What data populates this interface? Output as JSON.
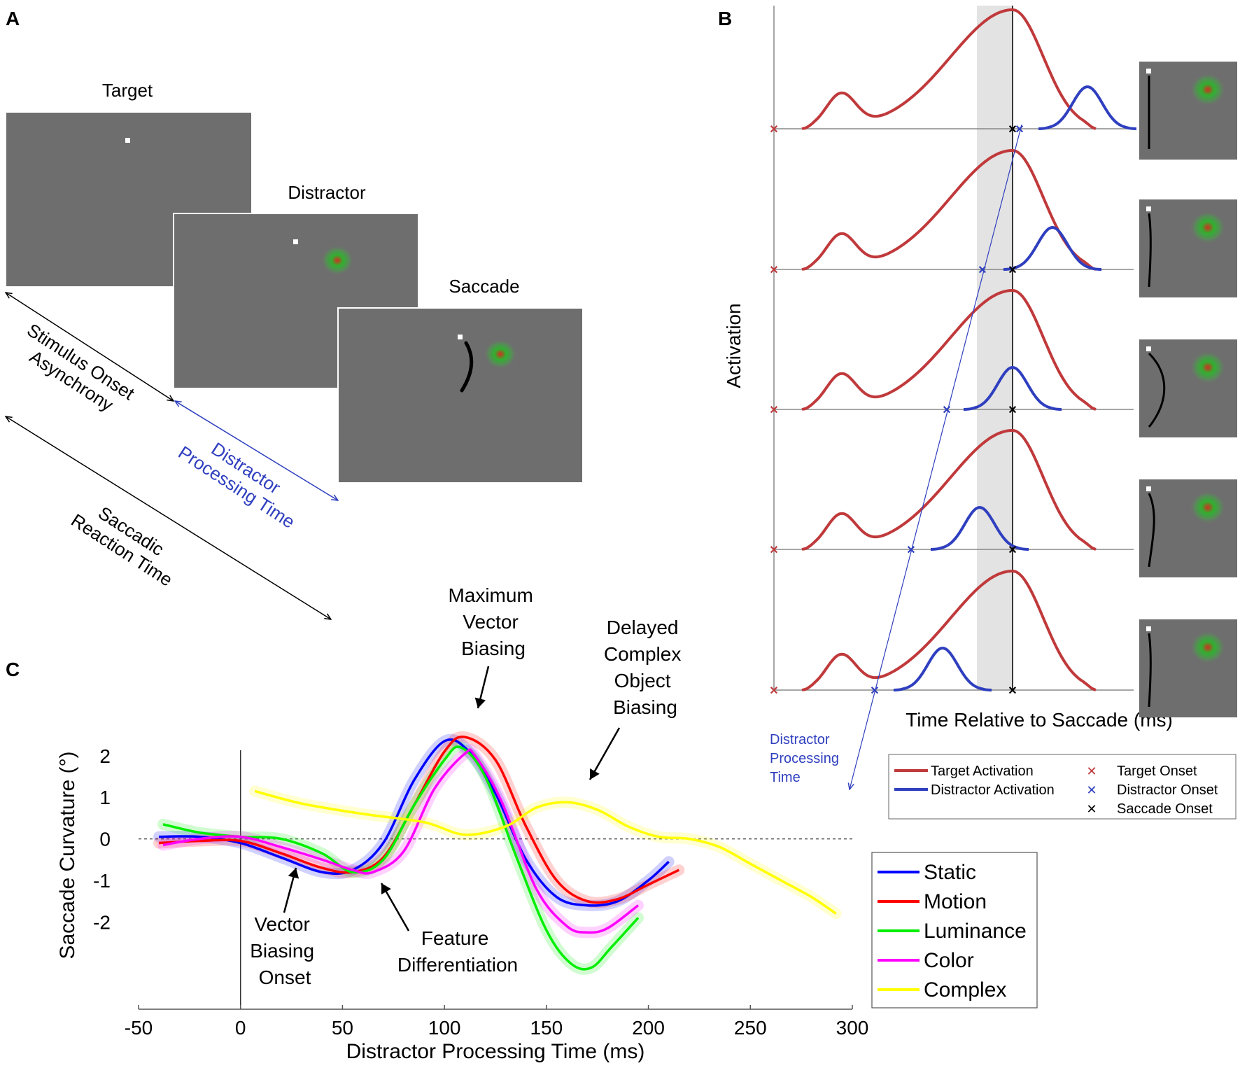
{
  "panel_labels": {
    "a": "A",
    "b": "B",
    "c": "C"
  },
  "panel_a": {
    "target_label": "Target",
    "distractor_label": "Distractor",
    "saccade_label": "Saccade",
    "soa_line1": "Stimulus Onset",
    "soa_line2": "Asynchrony",
    "dpt_line1": "Distractor",
    "dpt_line2": "Processing Time",
    "srt_line1": "Saccadic",
    "srt_line2": "Reaction Time"
  },
  "panel_b": {
    "ylabel": "Activation",
    "xlabel": "Time Relative to Saccade (ms)",
    "dpt_line1": "Distractor",
    "dpt_line2": "Processing",
    "dpt_line3": "Time",
    "legend": {
      "target_activation": "Target Activation",
      "distractor_activation": "Distractor Activation",
      "target_onset": "Target Onset",
      "distractor_onset": "Distractor Onset",
      "saccade_onset": "Saccade Onset"
    },
    "colors": {
      "target": "#c0393b",
      "distractor": "#2f3fbf",
      "saccade": "#000000",
      "shade": "#e3e3e3"
    }
  },
  "chart_data": {
    "type": "line",
    "title": "",
    "xlabel": "Distractor Processing Time (ms)",
    "ylabel": "Saccade Curvature (°)",
    "xlim": [
      -50,
      300
    ],
    "ylim": [
      -4.1,
      2.3
    ],
    "xticks": [
      "-50",
      "0",
      "50",
      "100",
      "150",
      "200",
      "250",
      "300"
    ],
    "yticks": [
      "2",
      "1",
      "0",
      "-1",
      "-2"
    ],
    "legend_position": "right",
    "series": [
      {
        "name": "Static",
        "color": "#0000ff",
        "x": [
          -40,
          -20,
          0,
          20,
          40,
          55,
          70,
          85,
          100,
          112,
          125,
          140,
          155,
          170,
          185,
          200,
          210
        ],
        "y": [
          0.05,
          0.05,
          -0.1,
          -0.45,
          -0.8,
          -0.75,
          -0.1,
          1.4,
          2.35,
          2.1,
          1.1,
          -0.5,
          -1.4,
          -1.6,
          -1.5,
          -1.0,
          -0.55
        ]
      },
      {
        "name": "Motion",
        "color": "#ff0000",
        "x": [
          -40,
          -20,
          0,
          20,
          40,
          55,
          70,
          85,
          100,
          110,
          125,
          140,
          155,
          170,
          185,
          200,
          215
        ],
        "y": [
          -0.1,
          -0.05,
          -0.05,
          -0.35,
          -0.7,
          -0.8,
          -0.45,
          0.8,
          2.1,
          2.45,
          1.9,
          0.3,
          -1.0,
          -1.5,
          -1.45,
          -1.1,
          -0.75
        ]
      },
      {
        "name": "Luminance",
        "color": "#00ee00",
        "x": [
          -38,
          -20,
          0,
          20,
          40,
          55,
          70,
          85,
          100,
          108,
          120,
          135,
          150,
          162,
          172,
          182,
          195
        ],
        "y": [
          0.35,
          0.15,
          0.05,
          0.0,
          -0.35,
          -0.8,
          -0.5,
          0.8,
          1.9,
          2.2,
          1.5,
          -0.4,
          -2.2,
          -3.0,
          -3.1,
          -2.6,
          -1.9
        ]
      },
      {
        "name": "Color",
        "color": "#ff00ff",
        "x": [
          -38,
          -20,
          0,
          20,
          40,
          55,
          65,
          80,
          95,
          110,
          115,
          128,
          145,
          160,
          170,
          180,
          195
        ],
        "y": [
          -0.15,
          0.0,
          0.05,
          -0.2,
          -0.5,
          -0.75,
          -0.8,
          -0.3,
          1.2,
          2.05,
          2.0,
          0.9,
          -1.2,
          -2.1,
          -2.25,
          -2.15,
          -1.6
        ]
      },
      {
        "name": "Complex",
        "color": "#ffff00",
        "x": [
          7,
          30,
          60,
          90,
          110,
          130,
          145,
          160,
          175,
          190,
          205,
          220,
          235,
          250,
          265,
          280,
          292
        ],
        "y": [
          1.15,
          0.85,
          0.6,
          0.4,
          0.1,
          0.3,
          0.75,
          0.88,
          0.7,
          0.3,
          0.05,
          0.0,
          -0.2,
          -0.6,
          -1.0,
          -1.4,
          -1.8
        ]
      }
    ],
    "annotations": {
      "max_vector_1": "Maximum",
      "max_vector_2": "Vector",
      "max_vector_3": "Biasing",
      "delayed_1": "Delayed",
      "delayed_2": "Complex",
      "delayed_3": "Object",
      "delayed_4": "Biasing",
      "vector_onset_1": "Vector",
      "vector_onset_2": "Biasing",
      "vector_onset_3": "Onset",
      "feature_1": "Feature",
      "feature_2": "Differentiation"
    }
  }
}
